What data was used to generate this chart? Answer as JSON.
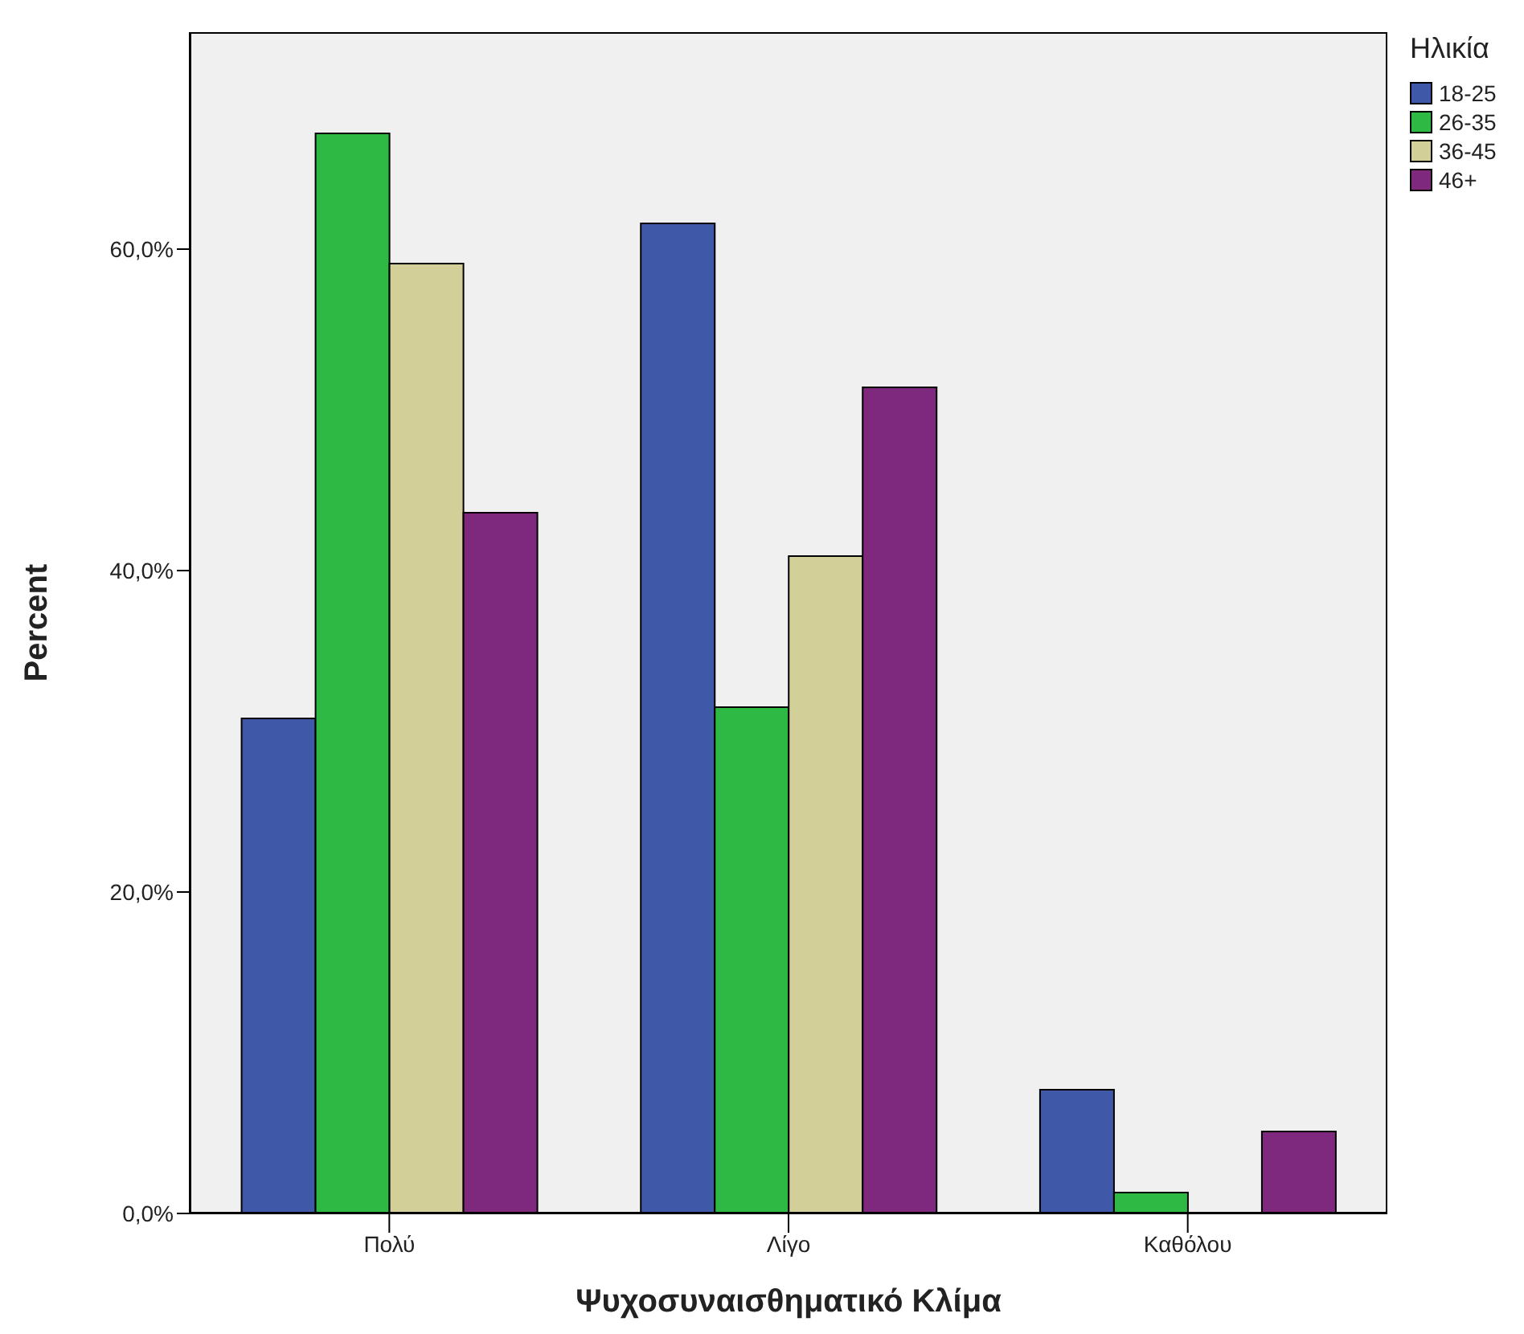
{
  "chart_data": {
    "type": "bar",
    "xlabel": "Ψυχοσυναισθηματικό Κλίμα",
    "ylabel": "Percent",
    "legend_title": "Ηλικία",
    "categories": [
      "Πολύ",
      "Λίγο",
      "Καθόλου"
    ],
    "series": [
      {
        "name": "18-25",
        "color": "#3f58a8",
        "values": [
          30.8,
          61.6,
          7.7
        ]
      },
      {
        "name": "26-35",
        "color": "#2eb844",
        "values": [
          67.2,
          31.5,
          1.3
        ]
      },
      {
        "name": "36-45",
        "color": "#d3cf98",
        "values": [
          59.1,
          40.9,
          0
        ]
      },
      {
        "name": "46+",
        "color": "#7e287e",
        "values": [
          43.6,
          51.4,
          5.1
        ]
      }
    ],
    "ylim": [
      0,
      73.5
    ],
    "yticks": [
      {
        "value": 0,
        "label": "0,0%"
      },
      {
        "value": 20,
        "label": "20,0%"
      },
      {
        "value": 40,
        "label": "40,0%"
      },
      {
        "value": 60,
        "label": "60,0%"
      }
    ],
    "grid": false,
    "legend": "top right"
  }
}
